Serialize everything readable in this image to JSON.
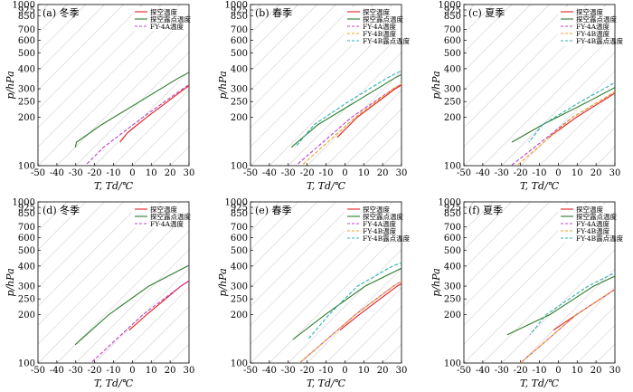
{
  "chart_data": [
    {
      "type": "line",
      "title": "(a) 冬季",
      "xlabel": "T, Td/℃",
      "ylabel": "p/hPa",
      "xlim": [
        -50,
        30
      ],
      "ylim": [
        1000,
        100
      ],
      "y_scale": "log",
      "x_ticks": [
        -50,
        -40,
        -30,
        -20,
        -10,
        0,
        10,
        20,
        30
      ],
      "y_ticks": [
        100,
        200,
        250,
        300,
        400,
        500,
        600,
        700,
        850,
        925,
        1000
      ],
      "legend_position": "top-right",
      "skew_grid": true,
      "series": [
        {
          "name": "探空温度",
          "color": "#e02020",
          "dash": "solid",
          "x": [
            8,
            6,
            3,
            -3,
            -8,
            -13,
            -18,
            -20,
            -19
          ],
          "y": [
            850,
            700,
            600,
            500,
            400,
            300,
            200,
            160,
            140
          ]
        },
        {
          "name": "探空露点温度",
          "color": "#2a7a2a",
          "dash": "solid",
          "x": [
            4,
            2,
            5,
            3,
            -10,
            -22,
            -30,
            -38,
            -42,
            -40
          ],
          "y": [
            880,
            800,
            700,
            650,
            500,
            350,
            250,
            180,
            140,
            130
          ]
        },
        {
          "name": "FY-4A温度",
          "color": "#c040c0",
          "dash": "dashed",
          "x": [
            10,
            8,
            4,
            -2,
            -8,
            -14,
            -20,
            -25,
            -25
          ],
          "y": [
            880,
            750,
            650,
            500,
            400,
            300,
            200,
            130,
            100
          ]
        }
      ]
    },
    {
      "type": "line",
      "title": "(b) 春季",
      "xlabel": "T, Td/℃",
      "ylabel": "p/hPa",
      "xlim": [
        -50,
        30
      ],
      "ylim": [
        1000,
        100
      ],
      "y_scale": "log",
      "x_ticks": [
        -50,
        -40,
        -30,
        -20,
        -10,
        0,
        10,
        20,
        30
      ],
      "y_ticks": [
        100,
        200,
        250,
        300,
        400,
        500,
        600,
        700,
        850,
        925,
        1000
      ],
      "legend_position": "top-right",
      "skew_grid": true,
      "series": [
        {
          "name": "探空温度",
          "color": "#e02020",
          "dash": "solid",
          "x": [
            18,
            15,
            9,
            1,
            -7,
            -14,
            -19,
            -19
          ],
          "y": [
            870,
            700,
            600,
            500,
            400,
            300,
            200,
            150
          ]
        },
        {
          "name": "探空露点温度",
          "color": "#2a7a2a",
          "dash": "solid",
          "x": [
            15,
            12,
            3,
            -8,
            -20,
            -28,
            -36,
            -38
          ],
          "y": [
            870,
            700,
            600,
            500,
            350,
            250,
            180,
            130
          ]
        },
        {
          "name": "FY-4A温度",
          "color": "#c040c0",
          "dash": "dashed",
          "x": [
            19,
            15,
            8,
            0,
            -8,
            -15,
            -22,
            -26
          ],
          "y": [
            880,
            700,
            600,
            500,
            400,
            300,
            200,
            100
          ]
        },
        {
          "name": "FY-4B温度",
          "color": "#f0a020",
          "dash": "dashed",
          "x": [
            18,
            15,
            8,
            0,
            -8,
            -15,
            -20,
            -23
          ],
          "y": [
            880,
            700,
            600,
            500,
            400,
            300,
            200,
            100
          ]
        },
        {
          "name": "FY-4B露点温度",
          "color": "#30b0b0",
          "dash": "dashed",
          "x": [
            14,
            10,
            0,
            -12,
            -24,
            -32,
            -38,
            -36
          ],
          "y": [
            870,
            700,
            600,
            500,
            350,
            250,
            180,
            130
          ]
        }
      ]
    },
    {
      "type": "line",
      "title": "(c) 夏季",
      "xlabel": "T, Td/℃",
      "ylabel": "p/hPa",
      "xlim": [
        -50,
        30
      ],
      "ylim": [
        1000,
        100
      ],
      "y_scale": "log",
      "x_ticks": [
        -50,
        -40,
        -30,
        -20,
        -10,
        0,
        10,
        20,
        30
      ],
      "y_ticks": [
        100,
        200,
        250,
        300,
        400,
        500,
        600,
        700,
        850,
        925,
        1000
      ],
      "legend_position": "top-right",
      "skew_grid": true,
      "series": [
        {
          "name": "探空温度",
          "color": "#e02020",
          "dash": "solid",
          "x": [
            26,
            22,
            16,
            9,
            1,
            -7,
            -16,
            -20
          ],
          "y": [
            880,
            700,
            600,
            500,
            400,
            300,
            200,
            150
          ]
        },
        {
          "name": "探空露点温度",
          "color": "#2a7a2a",
          "dash": "solid",
          "x": [
            23,
            18,
            12,
            4,
            -7,
            -18,
            -30,
            -37
          ],
          "y": [
            880,
            700,
            600,
            500,
            350,
            250,
            180,
            140
          ]
        },
        {
          "name": "FY-4A温度",
          "color": "#c040c0",
          "dash": "dashed",
          "x": [
            26,
            21,
            15,
            8,
            0,
            -8,
            -18,
            -25
          ],
          "y": [
            880,
            700,
            600,
            500,
            400,
            300,
            200,
            100
          ]
        },
        {
          "name": "FY-4B温度",
          "color": "#f0a020",
          "dash": "dashed",
          "x": [
            26,
            21,
            15,
            8,
            0,
            -8,
            -18,
            -22
          ],
          "y": [
            880,
            700,
            600,
            500,
            400,
            300,
            200,
            100
          ]
        },
        {
          "name": "FY-4B露点温度",
          "color": "#30b0b0",
          "dash": "dashed",
          "x": [
            20,
            15,
            8,
            -1,
            -12,
            -22,
            -30,
            -28
          ],
          "y": [
            880,
            700,
            600,
            500,
            350,
            250,
            180,
            140
          ]
        }
      ]
    },
    {
      "type": "line",
      "title": "(d) 冬季",
      "xlabel": "T, Td/℃",
      "ylabel": "p/hPa",
      "xlim": [
        -50,
        30
      ],
      "ylim": [
        1000,
        100
      ],
      "y_scale": "log",
      "x_ticks": [
        -50,
        -40,
        -30,
        -20,
        -10,
        0,
        10,
        20,
        30
      ],
      "y_ticks": [
        100,
        200,
        250,
        300,
        400,
        500,
        600,
        700,
        850,
        925,
        1000
      ],
      "legend_position": "top-right",
      "skew_grid": true,
      "series": [
        {
          "name": "探空温度",
          "color": "#e02020",
          "dash": "solid",
          "x": [
            9,
            5,
            -2,
            -9,
            -15,
            -18,
            -19
          ],
          "y": [
            700,
            600,
            500,
            400,
            300,
            200,
            160
          ]
        },
        {
          "name": "探空露点温度",
          "color": "#2a7a2a",
          "dash": "solid",
          "x": [
            3,
            0,
            -10,
            -22,
            -32,
            -38,
            -40
          ],
          "y": [
            700,
            600,
            500,
            400,
            300,
            200,
            130
          ]
        },
        {
          "name": "FY-4A温度",
          "color": "#c040c0",
          "dash": "dashed",
          "x": [
            9,
            4,
            -2,
            -10,
            -15,
            -20,
            -22
          ],
          "y": [
            700,
            600,
            500,
            400,
            300,
            200,
            100
          ]
        }
      ]
    },
    {
      "type": "line",
      "title": "(e) 春季",
      "xlabel": "T, Td/℃",
      "ylabel": "p/hPa",
      "xlim": [
        -50,
        30
      ],
      "ylim": [
        1000,
        100
      ],
      "y_scale": "log",
      "x_ticks": [
        -50,
        -40,
        -30,
        -20,
        -10,
        0,
        10,
        20,
        30
      ],
      "y_ticks": [
        100,
        200,
        250,
        300,
        400,
        500,
        600,
        700,
        850,
        925,
        1000
      ],
      "legend_position": "top-right",
      "skew_grid": true,
      "series": [
        {
          "name": "探空温度",
          "color": "#e02020",
          "dash": "solid",
          "x": [
            16,
            10,
            2,
            -6,
            -13,
            -18,
            -20
          ],
          "y": [
            700,
            600,
            500,
            400,
            300,
            200,
            160
          ]
        },
        {
          "name": "探空露点温度",
          "color": "#2a7a2a",
          "dash": "solid",
          "x": [
            12,
            5,
            -6,
            -19,
            -30,
            -36,
            -40
          ],
          "y": [
            700,
            600,
            500,
            400,
            300,
            200,
            140
          ]
        },
        {
          "name": "FY-4A温度",
          "color": "#c040c0",
          "dash": "dashed",
          "x": [
            16,
            9,
            0,
            -8,
            -15,
            -20,
            -24
          ],
          "y": [
            700,
            600,
            500,
            400,
            300,
            200,
            100
          ]
        },
        {
          "name": "FY-4B温度",
          "color": "#f0a020",
          "dash": "dashed",
          "x": [
            15,
            8,
            0,
            -8,
            -15,
            -20,
            -24
          ],
          "y": [
            700,
            600,
            500,
            400,
            300,
            200,
            100
          ]
        },
        {
          "name": "FY-4B露点温度",
          "color": "#30b0b0",
          "dash": "dashed",
          "x": [
            10,
            0,
            -12,
            -26,
            -34,
            -34,
            -32
          ],
          "y": [
            700,
            600,
            500,
            400,
            300,
            200,
            140
          ]
        }
      ]
    },
    {
      "type": "line",
      "title": "(f) 夏季",
      "xlabel": "T, Td/℃",
      "ylabel": "p/hPa",
      "xlim": [
        -50,
        30
      ],
      "ylim": [
        1000,
        100
      ],
      "y_scale": "log",
      "x_ticks": [
        -50,
        -40,
        -30,
        -20,
        -10,
        0,
        10,
        20,
        30
      ],
      "y_ticks": [
        100,
        200,
        250,
        300,
        400,
        500,
        600,
        700,
        850,
        925,
        1000
      ],
      "legend_position": "top-right",
      "skew_grid": true,
      "series": [
        {
          "name": "探空温度",
          "color": "#e02020",
          "dash": "solid",
          "x": [
            21,
            16,
            9,
            1,
            -8,
            -16,
            -20
          ],
          "y": [
            700,
            600,
            500,
            400,
            300,
            200,
            160
          ]
        },
        {
          "name": "探空露点温度",
          "color": "#2a7a2a",
          "dash": "solid",
          "x": [
            18,
            12,
            2,
            -10,
            -22,
            -30,
            -42
          ],
          "y": [
            700,
            600,
            500,
            400,
            300,
            200,
            150
          ]
        },
        {
          "name": "FY-4A温度",
          "color": "#c040c0",
          "dash": "dashed",
          "x": [
            21,
            15,
            8,
            0,
            -8,
            -16,
            -20
          ],
          "y": [
            700,
            600,
            500,
            400,
            300,
            200,
            100
          ]
        },
        {
          "name": "FY-4B温度",
          "color": "#f0a020",
          "dash": "dashed",
          "x": [
            20,
            14,
            7,
            0,
            -8,
            -16,
            -20
          ],
          "y": [
            700,
            600,
            500,
            400,
            300,
            200,
            100
          ]
        },
        {
          "name": "FY-4B露点温度",
          "color": "#30b0b0",
          "dash": "dashed",
          "x": [
            15,
            8,
            -2,
            -14,
            -25,
            -32,
            -30
          ],
          "y": [
            700,
            600,
            500,
            400,
            300,
            200,
            150
          ]
        }
      ]
    }
  ]
}
